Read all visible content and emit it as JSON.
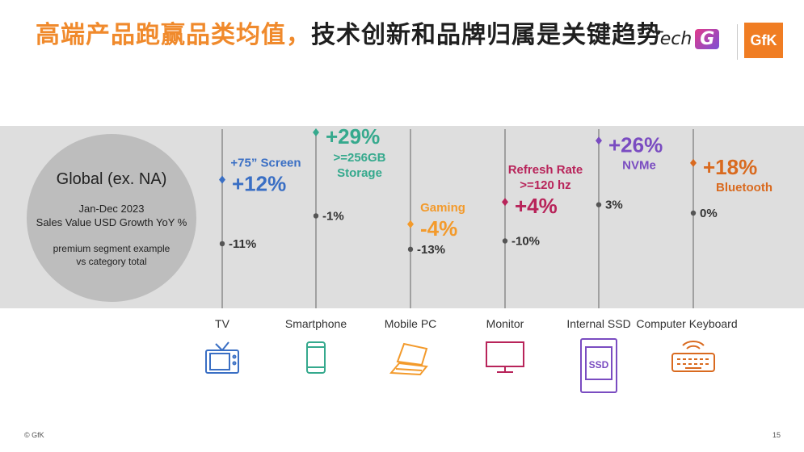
{
  "header": {
    "title_highlight": "高端产品跑赢品类均值，",
    "title_rest": "技术创新和品牌归属是关键趋势",
    "logo_techg_text": "Tech",
    "logo_techg_mark": "G",
    "logo_gfk": "GfK"
  },
  "circle": {
    "title": "Global (ex. NA)",
    "period": "Jan-Dec 2023",
    "metric": "Sales Value USD Growth YoY %",
    "note_line1": "premium segment example",
    "note_line2": "vs category total"
  },
  "footer": {
    "copyright": "© GfK",
    "page_number": "15"
  },
  "chart_data": {
    "type": "scatter",
    "title": "Sales Value USD Growth YoY %",
    "unit": "%",
    "categories": [
      {
        "name": "TV",
        "icon": "tv-icon",
        "color": "#3a6fc4",
        "total": -11,
        "total_label": "-11%",
        "premium": 12,
        "premium_label": "+12%",
        "premium_desc": [
          "+75” Screen"
        ]
      },
      {
        "name": "Smartphone",
        "icon": "smartphone-icon",
        "color": "#35a98d",
        "total": -1,
        "total_label": "-1%",
        "premium": 29,
        "premium_label": "+29%",
        "premium_desc": [
          ">=256GB",
          "Storage"
        ]
      },
      {
        "name": "Mobile PC",
        "icon": "laptop-icon",
        "color": "#f39a2b",
        "total": -13,
        "total_label": "-13%",
        "premium": -4,
        "premium_label": "-4%",
        "premium_desc": [
          "Gaming"
        ]
      },
      {
        "name": "Monitor",
        "icon": "monitor-icon",
        "color": "#b8245a",
        "total": -10,
        "total_label": "-10%",
        "premium": 4,
        "premium_label": "+4%",
        "premium_desc": [
          "Refresh Rate",
          ">=120 hz"
        ]
      },
      {
        "name": "Internal SSD",
        "icon": "ssd-icon",
        "color": "#7a4cc1",
        "total": 3,
        "total_label": "3%",
        "premium": 26,
        "premium_label": "+26%",
        "premium_desc": [
          "NVMe"
        ]
      },
      {
        "name": "Computer Keyboard",
        "icon": "keyboard-icon",
        "color": "#d96a1f",
        "total": 0,
        "total_label": "0%",
        "premium": 18,
        "premium_label": "+18%",
        "premium_desc": [
          "Bluetooth"
        ]
      }
    ]
  }
}
